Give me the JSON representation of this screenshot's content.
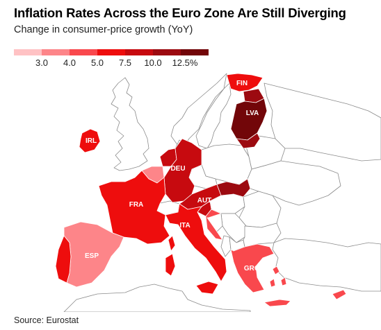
{
  "header": {
    "title": "Inflation Rates Across the Euro Zone Are Still Diverging",
    "subtitle": "Change in consumer-price growth (YoY)"
  },
  "legend": {
    "ticks": [
      "3.0",
      "4.0",
      "5.0",
      "7.5",
      "10.0",
      "12.5%"
    ],
    "colors": [
      "#ffc2c4",
      "#fd8589",
      "#f9484d",
      "#ee0d0d",
      "#c70a0f",
      "#9c0a10",
      "#720609"
    ]
  },
  "map": {
    "countries": [
      {
        "code": "FIN",
        "label": "FIN",
        "color": "#ee0d0d"
      },
      {
        "code": "LVA",
        "label": "LVA",
        "color": "#720609"
      },
      {
        "code": "IRL",
        "label": "IRL",
        "color": "#ee0d0d"
      },
      {
        "code": "DEU",
        "label": "DEU",
        "color": "#c70a0f"
      },
      {
        "code": "FRA",
        "label": "FRA",
        "color": "#ee0d0d"
      },
      {
        "code": "AUT",
        "label": "AUT",
        "color": "#c70a0f"
      },
      {
        "code": "ITA",
        "label": "ITA",
        "color": "#ee0d0d"
      },
      {
        "code": "ESP",
        "label": "ESP",
        "color": "#fd8589"
      },
      {
        "code": "GRC",
        "label": "GRC",
        "color": "#f9484d"
      },
      {
        "code": "SVK",
        "label": "",
        "color": "#9c0a10"
      },
      {
        "code": "BEL",
        "label": "",
        "color": "#fd8589"
      },
      {
        "code": "PRT",
        "label": "",
        "color": "#ee0d0d"
      },
      {
        "code": "SVN",
        "label": "",
        "color": "#c70a0f"
      },
      {
        "code": "HRV",
        "label": "",
        "color": "#f9484d"
      },
      {
        "code": "LTU",
        "label": "",
        "color": "#9c0a10"
      },
      {
        "code": "EST",
        "label": "",
        "color": "#9c0a10"
      },
      {
        "code": "NLD",
        "label": "",
        "color": "#c70a0f"
      }
    ]
  },
  "footer": {
    "source": "Source: Eurostat"
  }
}
